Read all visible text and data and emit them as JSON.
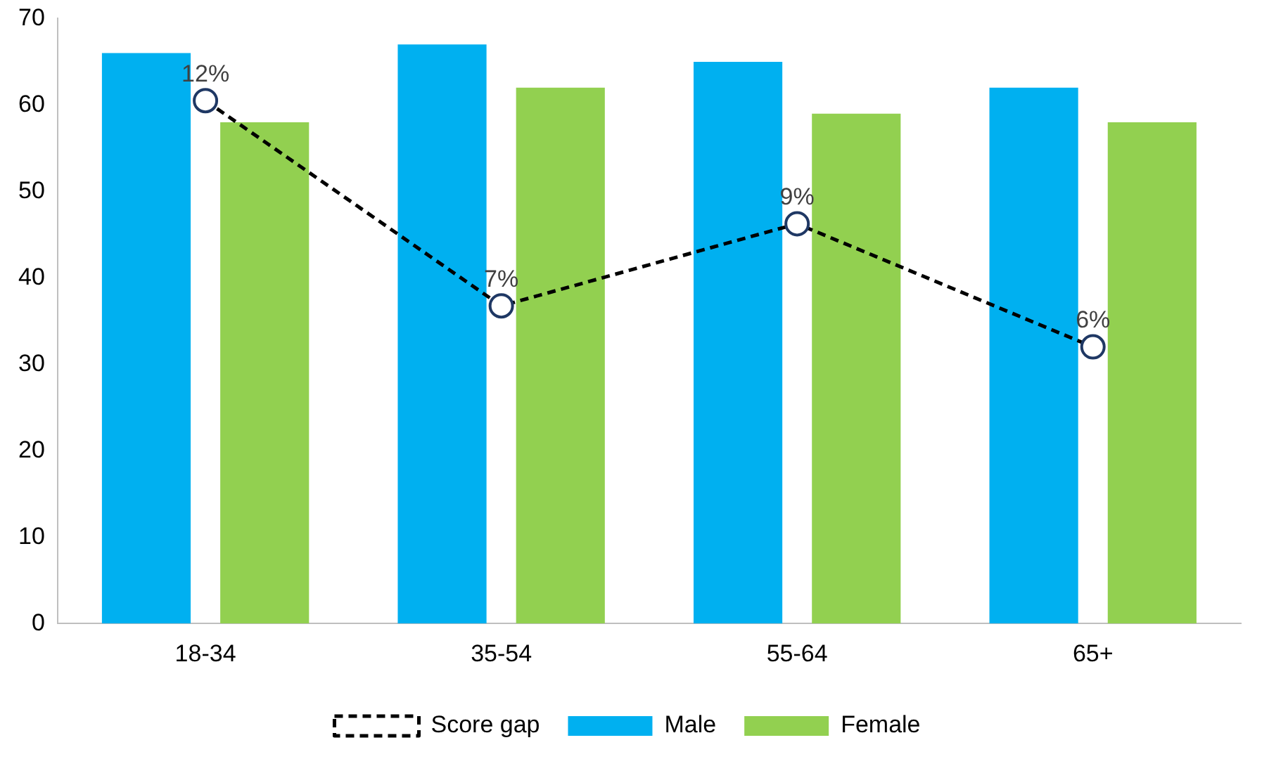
{
  "chart_data": {
    "type": "bar",
    "categories": [
      "18-34",
      "35-54",
      "55-64",
      "65+"
    ],
    "series": [
      {
        "name": "Male",
        "color": "#00b0f0",
        "values": [
          66,
          67,
          65,
          62
        ]
      },
      {
        "name": "Female",
        "color": "#92d050",
        "values": [
          58,
          62,
          59,
          58
        ]
      },
      {
        "name": "Score gap",
        "type": "line",
        "axis": "y2",
        "color": "#000000",
        "marker": "circle",
        "line_style": "dashed",
        "values": [
          12,
          7,
          9,
          6
        ],
        "value_labels": [
          "12%",
          "7%",
          "9%",
          "6%"
        ]
      }
    ],
    "ylim": [
      0,
      70
    ],
    "yticks": [
      0,
      10,
      20,
      30,
      40,
      50,
      60,
      70
    ],
    "y2lim": [
      -0.74,
      14
    ],
    "tick_labels": "xy",
    "grid": false,
    "legend": "bottom"
  }
}
